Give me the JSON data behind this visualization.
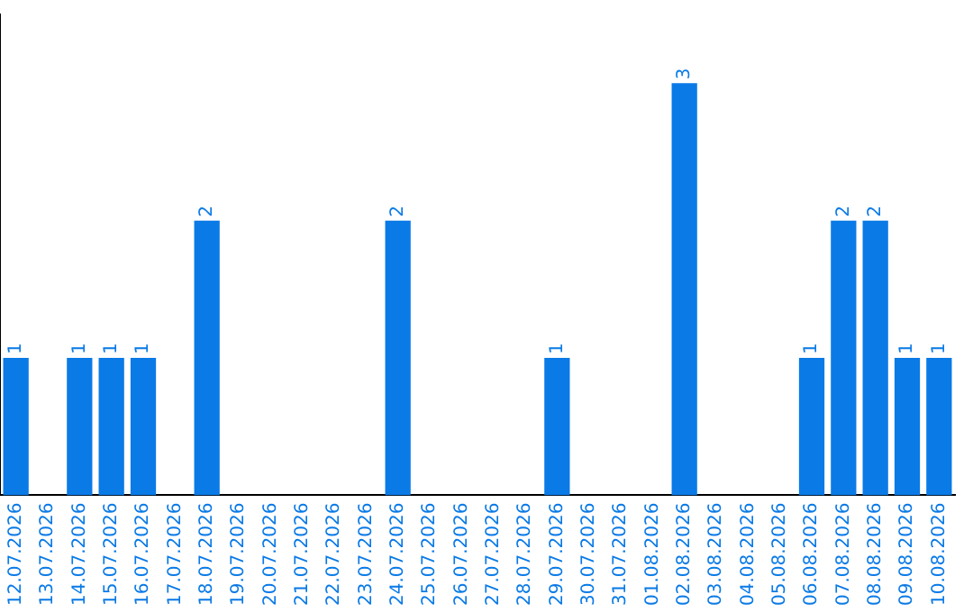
{
  "chart_data": {
    "type": "bar",
    "categories": [
      "12.07.2026",
      "13.07.2026",
      "14.07.2026",
      "15.07.2026",
      "16.07.2026",
      "17.07.2026",
      "18.07.2026",
      "19.07.2026",
      "20.07.2026",
      "21.07.2026",
      "22.07.2026",
      "23.07.2026",
      "24.07.2026",
      "25.07.2026",
      "26.07.2026",
      "27.07.2026",
      "28.07.2026",
      "29.07.2026",
      "30.07.2026",
      "31.07.2026",
      "01.08.2026",
      "02.08.2026",
      "03.08.2026",
      "04.08.2026",
      "05.08.2026",
      "06.08.2026",
      "07.08.2026",
      "08.08.2026",
      "09.08.2026",
      "10.08.2026"
    ],
    "values": [
      1,
      0,
      1,
      1,
      1,
      0,
      2,
      0,
      0,
      0,
      0,
      0,
      2,
      0,
      0,
      0,
      0,
      1,
      0,
      0,
      0,
      3,
      0,
      0,
      0,
      1,
      2,
      2,
      1,
      1
    ],
    "value_labels": [
      "1",
      null,
      "1",
      "1",
      "1",
      null,
      "2",
      null,
      null,
      null,
      null,
      null,
      "2",
      null,
      null,
      null,
      null,
      "1",
      null,
      null,
      null,
      "3",
      null,
      null,
      null,
      "1",
      "2",
      "2",
      "1",
      "1"
    ],
    "color": "#0a7ae6",
    "tick_labels": "x",
    "grid": false,
    "legend": false
  }
}
